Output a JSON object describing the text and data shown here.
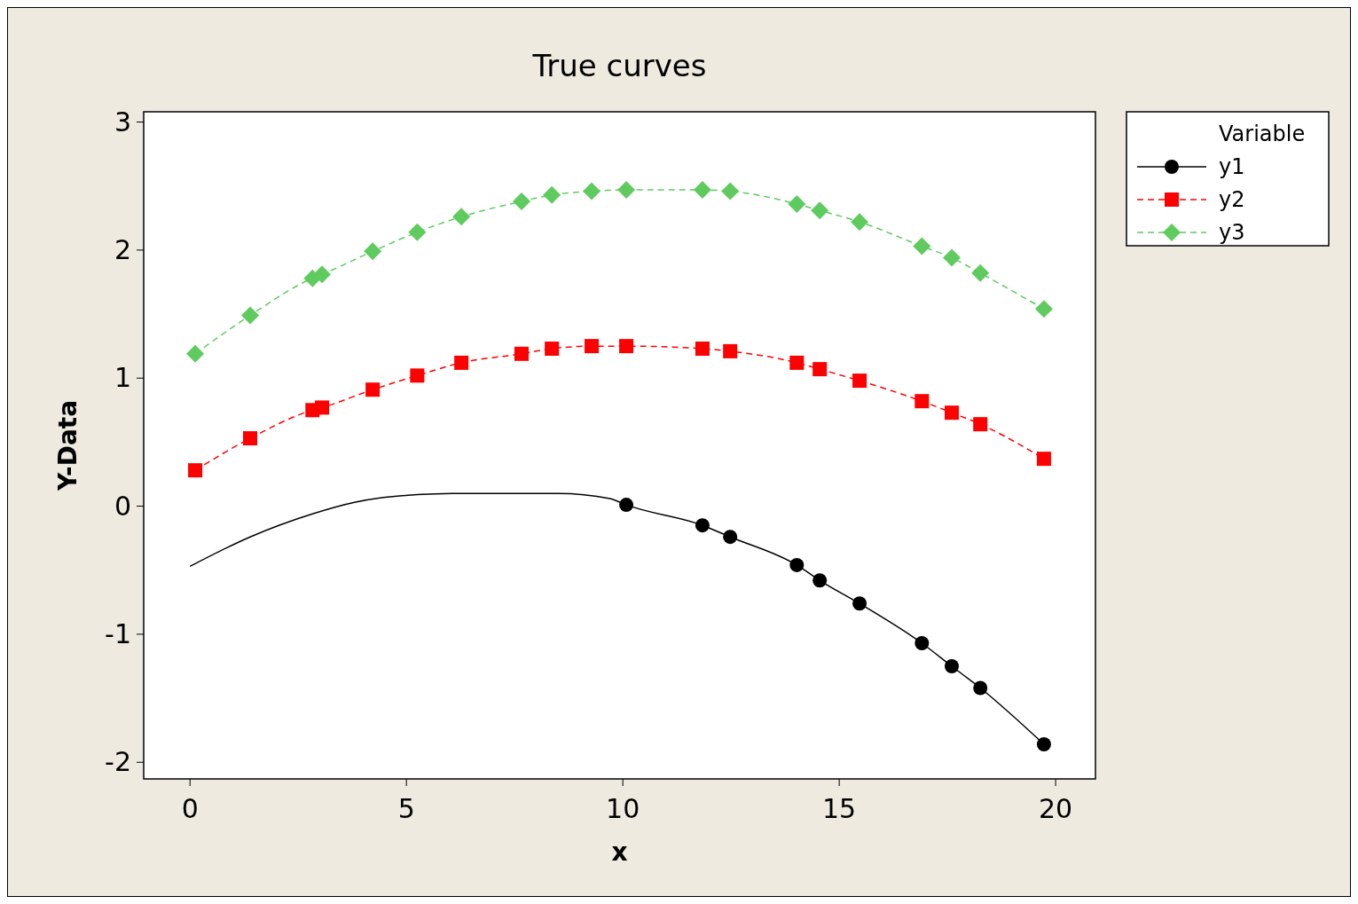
{
  "chart_data": {
    "type": "line",
    "title": "True curves",
    "xlabel": "x",
    "ylabel": "Y-Data",
    "legend_title": "Variable",
    "legend": "right",
    "grid": false,
    "xlim": [
      -1.07,
      20.92
    ],
    "ylim": [
      -2.13,
      3.08
    ],
    "xticks": [
      0,
      5,
      10,
      15,
      20
    ],
    "yticks": [
      -2,
      -1,
      0,
      1,
      2,
      3
    ],
    "series": [
      {
        "name": "y1",
        "type": "line",
        "color": "#000000",
        "line_style": "solid",
        "marker": "none",
        "x": [
          0,
          1.39,
          2.83,
          3.8,
          5.25,
          6.27,
          8.5,
          9.7,
          10.08,
          11.84,
          12.48,
          14.02,
          14.55,
          15.47,
          16.91,
          17.6,
          18.26,
          19.73
        ],
        "values": [
          -0.47,
          -0.24,
          -0.06,
          0.03,
          0.09,
          0.1,
          0.1,
          0.06,
          0.01,
          -0.15,
          -0.24,
          -0.46,
          -0.58,
          -0.76,
          -1.07,
          -1.25,
          -1.42,
          -1.86
        ]
      },
      {
        "name": "y2",
        "type": "line",
        "color": "#ff0000",
        "line_style": "dashed",
        "marker": "square",
        "x": [
          0.12,
          1.39,
          2.83,
          3.05,
          4.22,
          5.25,
          6.27,
          7.66,
          8.36,
          9.28,
          10.08,
          11.84,
          12.48,
          14.02,
          14.55,
          15.47,
          16.91,
          17.6,
          18.26,
          19.73
        ],
        "values": [
          0.28,
          0.53,
          0.75,
          0.77,
          0.91,
          1.02,
          1.12,
          1.19,
          1.23,
          1.25,
          1.25,
          1.23,
          1.21,
          1.12,
          1.07,
          0.98,
          0.82,
          0.73,
          0.64,
          0.37
        ]
      },
      {
        "name": "y3",
        "type": "line",
        "color": "#5fcb5f",
        "line_style": "dashed",
        "marker": "diamond",
        "x": [
          0.12,
          1.39,
          2.83,
          3.05,
          4.22,
          5.25,
          6.27,
          7.66,
          8.36,
          9.28,
          10.08,
          11.84,
          12.48,
          14.02,
          14.55,
          15.47,
          16.91,
          17.6,
          18.26,
          19.73
        ],
        "values": [
          1.19,
          1.49,
          1.78,
          1.81,
          1.99,
          2.14,
          2.26,
          2.38,
          2.43,
          2.46,
          2.47,
          2.47,
          2.46,
          2.36,
          2.31,
          2.22,
          2.03,
          1.94,
          1.82,
          1.54
        ]
      },
      {
        "type": "scatter",
        "color": "#000000",
        "marker": "circle",
        "x": [
          10.08,
          11.84,
          12.48,
          14.02,
          14.55,
          15.47,
          16.91,
          17.6,
          18.26,
          19.73
        ],
        "values": [
          0.01,
          -0.15,
          -0.24,
          -0.46,
          -0.58,
          -0.76,
          -1.07,
          -1.25,
          -1.42,
          -1.86
        ]
      }
    ]
  }
}
